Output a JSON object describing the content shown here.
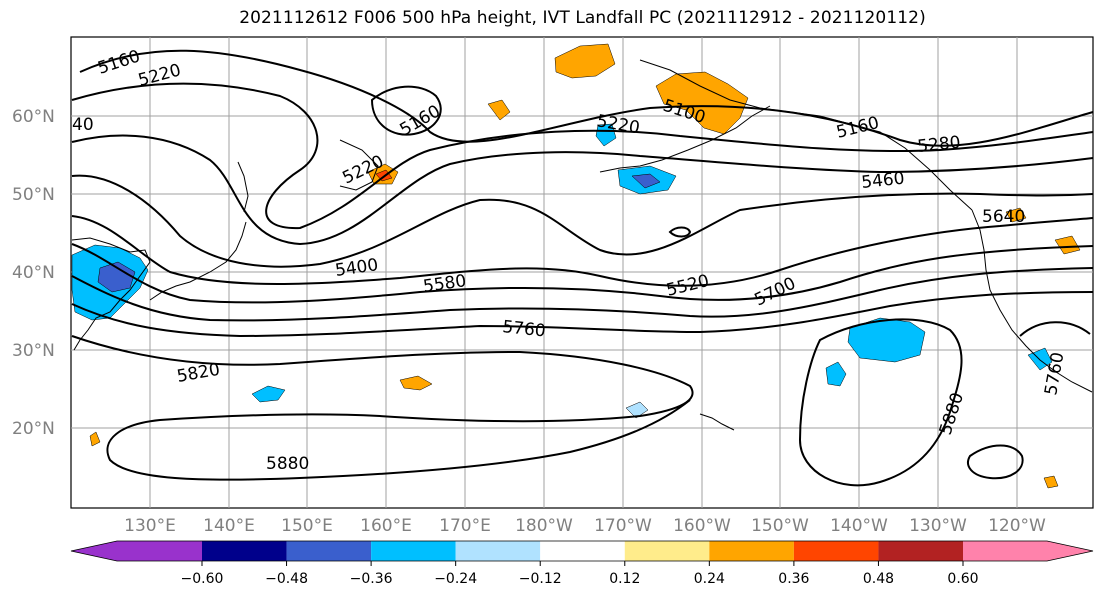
{
  "title": "2021112612 F006 500 hPa height, IVT Landfall PC (2021112912 - 2021120112)",
  "lat_labels": [
    "60°N",
    "50°N",
    "40°N",
    "30°N",
    "20°N"
  ],
  "lon_labels": [
    "130°E",
    "140°E",
    "150°E",
    "160°E",
    "170°E",
    "180°W",
    "170°W",
    "160°W",
    "150°W",
    "140°W",
    "130°W",
    "120°W"
  ],
  "contour_labels": [
    "5160",
    "5220",
    "5100",
    "5160",
    "5220",
    "5220",
    "5160",
    "5280",
    "5460",
    "5640",
    "5400",
    "5580",
    "5520",
    "5700",
    "5760",
    "5820",
    "5880",
    "5880",
    "5760",
    "40"
  ],
  "colorbar": {
    "ticks": [
      "−0.60",
      "−0.48",
      "−0.36",
      "−0.24",
      "−0.12",
      "0.12",
      "0.24",
      "0.36",
      "0.48",
      "0.60"
    ],
    "colors": [
      "#9932cc",
      "#00008b",
      "#3a5fcd",
      "#00bfff",
      "#b0e2ff",
      "#ffffff",
      "#ffec8b",
      "#ffa500",
      "#ff4500",
      "#b22222",
      "#ff82ab"
    ]
  }
}
